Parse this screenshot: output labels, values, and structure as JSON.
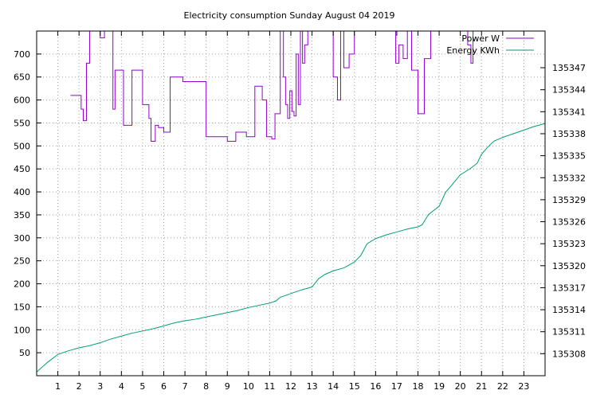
{
  "chart_data": {
    "type": "line",
    "title": "Electricity consumption Sunday August 04 2019",
    "xlabel": "",
    "ylabel": "",
    "y2label": "",
    "xlim": [
      0,
      24
    ],
    "ylim": [
      0,
      750
    ],
    "y2lim": [
      135305,
      135352
    ],
    "xticks": [
      1,
      2,
      3,
      4,
      5,
      6,
      7,
      8,
      9,
      10,
      11,
      12,
      13,
      14,
      15,
      16,
      17,
      18,
      19,
      20,
      21,
      22,
      23
    ],
    "yticks": [
      50,
      100,
      150,
      200,
      250,
      300,
      350,
      400,
      450,
      500,
      550,
      600,
      650,
      700
    ],
    "y2ticks": [
      135308,
      135311,
      135314,
      135317,
      135320,
      135323,
      135326,
      135329,
      135332,
      135335,
      135338,
      135341,
      135344,
      135347
    ],
    "grid": true,
    "legend_position": "top-right",
    "series": [
      {
        "name": "Power W",
        "color": "#9400d3",
        "axis": "left",
        "style": "steps",
        "x": [
          1.6,
          2.1,
          2.2,
          2.35,
          2.5,
          3.0,
          3.2,
          3.6,
          3.7,
          4.1,
          4.5,
          5.0,
          5.3,
          5.4,
          5.6,
          5.75,
          6.0,
          6.3,
          6.9,
          8.0,
          8.5,
          9.0,
          9.4,
          9.9,
          10.3,
          10.65,
          10.85,
          11.1,
          11.25,
          11.5,
          11.65,
          11.75,
          11.85,
          11.95,
          12.05,
          12.15,
          12.25,
          12.35,
          12.45,
          12.55,
          12.65,
          12.8,
          13.0,
          14.0,
          14.2,
          14.35,
          14.5,
          14.75,
          15.0,
          16.8,
          16.95,
          17.1,
          17.3,
          17.5,
          17.7,
          18.0,
          18.3,
          18.6,
          19.0,
          20.35,
          20.5,
          20.6,
          21.0,
          24.0
        ],
        "values": [
          610,
          580,
          555,
          680,
          750,
          735,
          750,
          580,
          665,
          545,
          665,
          590,
          560,
          510,
          545,
          540,
          530,
          650,
          640,
          520,
          520,
          510,
          530,
          520,
          630,
          600,
          520,
          515,
          570,
          750,
          650,
          590,
          560,
          620,
          575,
          565,
          700,
          590,
          750,
          680,
          720,
          750,
          750,
          650,
          600,
          750,
          670,
          700,
          750,
          750,
          680,
          720,
          690,
          750,
          665,
          570,
          690,
          750,
          750,
          720,
          680,
          750,
          750,
          750
        ]
      },
      {
        "name": "Energy KWh",
        "color": "#009e73",
        "axis": "right",
        "style": "line",
        "x": [
          0,
          0.5,
          1,
          1.5,
          2,
          2.5,
          3,
          3.5,
          4,
          4.5,
          5,
          5.5,
          6,
          6.5,
          7,
          7.5,
          8,
          8.5,
          9,
          9.5,
          10,
          10.5,
          11,
          11.3,
          11.5,
          12,
          12.5,
          13,
          13.3,
          13.6,
          14,
          14.5,
          15,
          15.3,
          15.6,
          16,
          16.5,
          17,
          17.5,
          18,
          18.2,
          18.5,
          19,
          19.3,
          19.6,
          20,
          20.5,
          20.8,
          21,
          21.3,
          21.6,
          22,
          22.5,
          23,
          23.5,
          24
        ],
        "values": [
          135305.5,
          135306.8,
          135307.9,
          135308.4,
          135308.8,
          135309.1,
          135309.5,
          135310.0,
          135310.4,
          135310.8,
          135311.1,
          135311.4,
          135311.8,
          135312.2,
          135312.5,
          135312.7,
          135313.0,
          135313.3,
          135313.6,
          135313.9,
          135314.3,
          135314.6,
          135314.9,
          135315.2,
          135315.7,
          135316.2,
          135316.7,
          135317.1,
          135318.2,
          135318.8,
          135319.3,
          135319.7,
          135320.5,
          135321.4,
          135323.0,
          135323.7,
          135324.2,
          135324.6,
          135325.0,
          135325.3,
          135325.6,
          135327.0,
          135328.1,
          135330.0,
          135331.0,
          135332.4,
          135333.3,
          135334.0,
          135335.2,
          135336.2,
          135337.0,
          135337.5,
          135338.0,
          135338.5,
          135339.0,
          135339.4
        ]
      }
    ]
  }
}
